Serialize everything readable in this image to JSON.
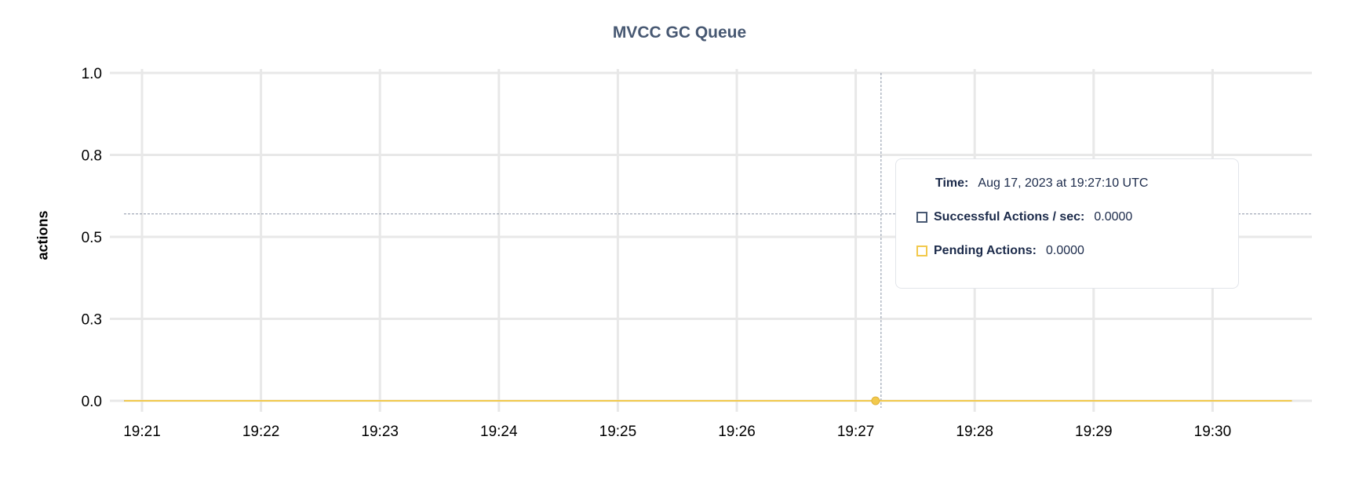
{
  "chart_data": {
    "type": "line",
    "title": "MVCC GC Queue",
    "ylabel": "actions",
    "xlabel": "",
    "ylim": [
      0,
      1.0
    ],
    "y_ticks": [
      "1.0",
      "0.8",
      "0.5",
      "0.3",
      "0.0"
    ],
    "y_tick_values": [
      1.0,
      0.75,
      0.5,
      0.25,
      0.0
    ],
    "x_ticks": [
      "19:21",
      "19:22",
      "19:23",
      "19:24",
      "19:25",
      "19:26",
      "19:27",
      "19:28",
      "19:29",
      "19:30"
    ],
    "xlim": [
      "19:20:51",
      "19:30:40"
    ],
    "grid": true,
    "series": [
      {
        "name": "Successful Actions / sec",
        "color": "#475872",
        "x": [
          "19:20:51",
          "19:30:40"
        ],
        "values": [
          0,
          0
        ]
      },
      {
        "name": "Pending Actions",
        "color": "#f2c94c",
        "x": [
          "19:20:51",
          "19:30:40"
        ],
        "values": [
          0,
          0
        ]
      }
    ],
    "hover": {
      "x": "19:27:10",
      "y": 0.57
    }
  },
  "tooltip": {
    "time_label": "Time:",
    "time_value": "Aug 17, 2023 at 19:27:10 UTC",
    "rows": [
      {
        "label": "Successful Actions / sec:",
        "value": "0.0000",
        "color": "#475872"
      },
      {
        "label": "Pending Actions:",
        "value": "0.0000",
        "color": "#f2c94c"
      }
    ]
  }
}
